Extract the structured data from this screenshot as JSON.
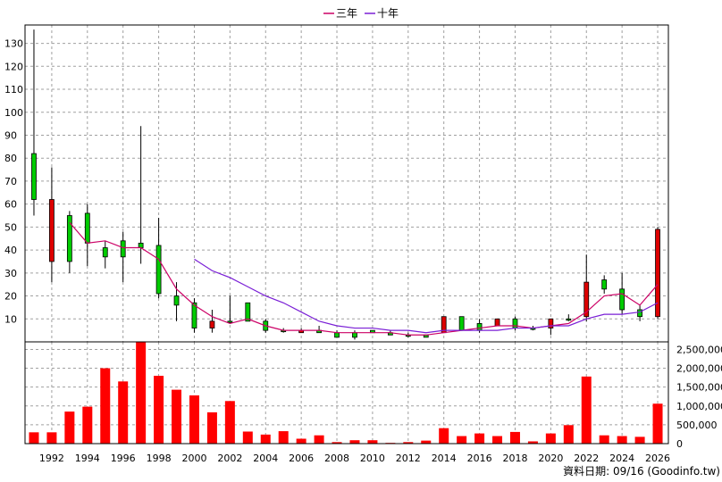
{
  "chart_data": {
    "type": "candlestick-with-volume",
    "legend": [
      {
        "name": "三年",
        "color": "#cc0066"
      },
      {
        "name": "十年",
        "color": "#7a1fd6"
      }
    ],
    "footer": "資料日期: 09/16 (Goodinfo.tw)",
    "price_axis": {
      "min": 0,
      "max": 138,
      "ticks": [
        10,
        20,
        30,
        40,
        50,
        60,
        70,
        80,
        90,
        100,
        110,
        120,
        130
      ]
    },
    "volume_axis": {
      "min": 0,
      "max": 2700000,
      "ticks": [
        0,
        500000,
        1000000,
        1500000,
        2000000,
        2500000
      ],
      "tick_labels": [
        "0",
        "500,000",
        "1,000,000",
        "1,500,000",
        "2,000,000",
        "2,500,000"
      ]
    },
    "x_axis": {
      "min": 1990.5,
      "max": 2026.6,
      "ticks": [
        1992,
        1994,
        1996,
        1998,
        2000,
        2002,
        2004,
        2006,
        2008,
        2010,
        2012,
        2014,
        2016,
        2018,
        2020,
        2022,
        2024,
        2026
      ]
    },
    "years": [
      1991,
      1992,
      1993,
      1994,
      1995,
      1996,
      1997,
      1998,
      1999,
      2000,
      2001,
      2002,
      2003,
      2004,
      2005,
      2006,
      2007,
      2008,
      2009,
      2010,
      2011,
      2012,
      2013,
      2014,
      2015,
      2016,
      2017,
      2018,
      2019,
      2020,
      2021,
      2022,
      2023,
      2024,
      2025,
      2026
    ],
    "candles": [
      {
        "open": 62,
        "high": 136,
        "low": 55,
        "close": 82
      },
      {
        "open": 62,
        "high": 76,
        "low": 26,
        "close": 35
      },
      {
        "open": 35,
        "high": 57,
        "low": 30,
        "close": 55
      },
      {
        "open": 43,
        "high": 60,
        "low": 33,
        "close": 56
      },
      {
        "open": 37,
        "high": 44,
        "low": 32,
        "close": 41
      },
      {
        "open": 37,
        "high": 48,
        "low": 26,
        "close": 44
      },
      {
        "open": 41,
        "high": 94,
        "low": 34,
        "close": 43
      },
      {
        "open": 21,
        "high": 54,
        "low": 19,
        "close": 42
      },
      {
        "open": 16,
        "high": 26,
        "low": 9,
        "close": 20
      },
      {
        "open": 6,
        "high": 19,
        "low": 4,
        "close": 17
      },
      {
        "open": 9,
        "high": 14,
        "low": 4,
        "close": 6
      },
      {
        "open": 9,
        "high": 20,
        "low": 8,
        "close": 9
      },
      {
        "open": 9,
        "high": 17,
        "low": 9,
        "close": 17
      },
      {
        "open": 5,
        "high": 10,
        "low": 4,
        "close": 9
      },
      {
        "open": 5,
        "high": 6,
        "low": 4,
        "close": 5
      },
      {
        "open": 5,
        "high": 6,
        "low": 4,
        "close": 4
      },
      {
        "open": 4,
        "high": 7,
        "low": 4,
        "close": 5
      },
      {
        "open": 2,
        "high": 5,
        "low": 2,
        "close": 4
      },
      {
        "open": 2,
        "high": 5,
        "low": 1,
        "close": 4
      },
      {
        "open": 4,
        "high": 5,
        "low": 4,
        "close": 5
      },
      {
        "open": 3,
        "high": 5,
        "low": 3,
        "close": 4
      },
      {
        "open": 3,
        "high": 4,
        "low": 2,
        "close": 3
      },
      {
        "open": 2,
        "high": 3,
        "low": 2,
        "close": 3
      },
      {
        "open": 11,
        "high": 11,
        "low": 4,
        "close": 4
      },
      {
        "open": 5,
        "high": 11,
        "low": 5,
        "close": 11
      },
      {
        "open": 5,
        "high": 10,
        "low": 4,
        "close": 8
      },
      {
        "open": 10,
        "high": 10,
        "low": 7,
        "close": 7
      },
      {
        "open": 6,
        "high": 11,
        "low": 5,
        "close": 10
      },
      {
        "open": 6,
        "high": 7,
        "low": 5,
        "close": 6
      },
      {
        "open": 10,
        "high": 10,
        "low": 3,
        "close": 6
      },
      {
        "open": 10,
        "high": 12,
        "low": 9,
        "close": 10
      },
      {
        "open": 26,
        "high": 38,
        "low": 9,
        "close": 11
      },
      {
        "open": 23,
        "high": 29,
        "low": 21,
        "close": 27
      },
      {
        "open": 14,
        "high": 30,
        "low": 12,
        "close": 23
      },
      {
        "open": 11,
        "high": 16,
        "low": 9,
        "close": 14
      },
      {
        "open": 49,
        "high": 50,
        "low": 10,
        "close": 11
      }
    ],
    "volume": [
      300000,
      300000,
      850000,
      980000,
      2000000,
      1650000,
      2700000,
      1800000,
      1430000,
      1280000,
      830000,
      1130000,
      320000,
      240000,
      330000,
      130000,
      220000,
      40000,
      90000,
      90000,
      20000,
      40000,
      80000,
      410000,
      200000,
      270000,
      200000,
      310000,
      60000,
      270000,
      490000,
      1780000,
      220000,
      200000,
      180000,
      1060000
    ],
    "series": [
      {
        "name": "三年",
        "x": [
          1993,
          1994,
          1995,
          1996,
          1997,
          1998,
          1999,
          2000,
          2001,
          2002,
          2003,
          2004,
          2005,
          2006,
          2007,
          2008,
          2009,
          2010,
          2011,
          2012,
          2013,
          2014,
          2015,
          2016,
          2017,
          2018,
          2019,
          2020,
          2021,
          2022,
          2023,
          2024,
          2025,
          2026
        ],
        "y": [
          52,
          43,
          44,
          41,
          41,
          36,
          23,
          16,
          11,
          8,
          10,
          7,
          5,
          5,
          5,
          4,
          4,
          4,
          4,
          3,
          3,
          4,
          5,
          6,
          7,
          7,
          6,
          7,
          8,
          13,
          20,
          21,
          16,
          25
        ]
      },
      {
        "name": "十年",
        "x": [
          2000,
          2001,
          2002,
          2003,
          2004,
          2005,
          2006,
          2007,
          2008,
          2009,
          2010,
          2011,
          2012,
          2013,
          2014,
          2015,
          2016,
          2017,
          2018,
          2019,
          2020,
          2021,
          2022,
          2023,
          2024,
          2025,
          2026
        ],
        "y": [
          36,
          31,
          28,
          24,
          20,
          17,
          13,
          9,
          7,
          6,
          6,
          5,
          5,
          4,
          5,
          5,
          5,
          5,
          6,
          6,
          7,
          7,
          10,
          12,
          12,
          13,
          17
        ]
      }
    ],
    "colors": {
      "up": "#dd0000",
      "down": "#00cc00",
      "volume": "#ff0000",
      "grid": "#a0a0a0",
      "plot_bg": "#ffffff"
    }
  }
}
